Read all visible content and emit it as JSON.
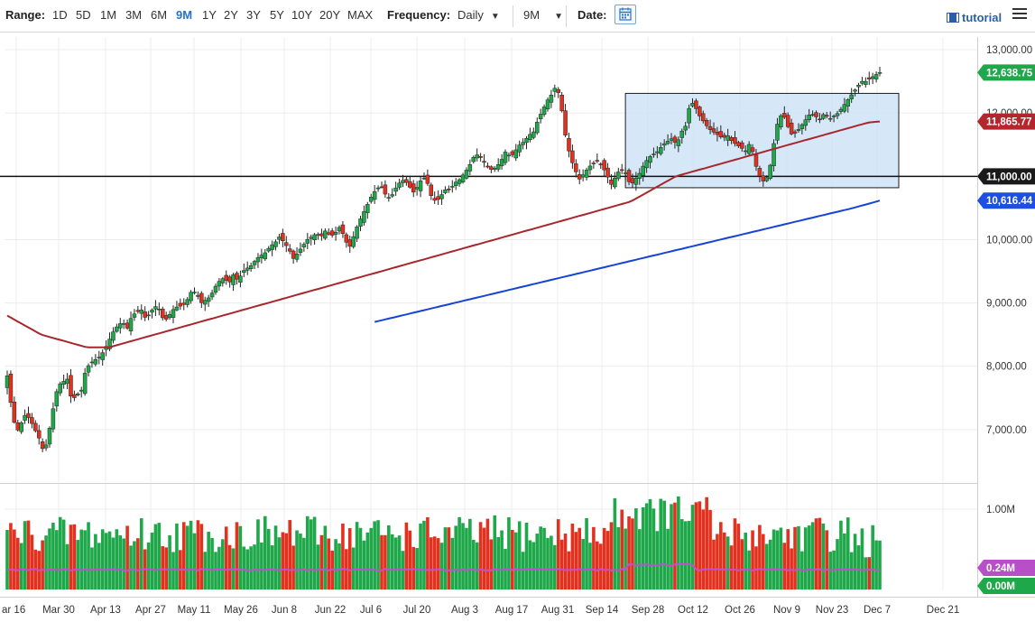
{
  "toolbar": {
    "range_label": "Range:",
    "ranges": [
      "1D",
      "5D",
      "1M",
      "3M",
      "6M",
      "9M",
      "1Y",
      "2Y",
      "3Y",
      "5Y",
      "10Y",
      "20Y",
      "MAX"
    ],
    "active_range": "9M",
    "frequency_label": "Frequency:",
    "frequency_value": "Daily",
    "period_value": "9M",
    "date_label": "Date:",
    "tutorial_label": "tutorial"
  },
  "colors": {
    "up": "#1fa84a",
    "down": "#e2321f",
    "ma_short": "#a8272c",
    "ma_long": "#1844d6",
    "volume_ma": "#c050d0",
    "range_box_fill": "#cfe3f7",
    "range_box_stroke": "#1a1a1a"
  },
  "chart_data": {
    "type": "candlestick",
    "price_axis": {
      "ticks": [
        "13,000.00",
        "12,000.00",
        "11,000.00",
        "10,000.00",
        "9,000.00",
        "8,000.00",
        "7,000.00"
      ],
      "ylim": [
        6200,
        13200
      ]
    },
    "x_axis": {
      "ticks": [
        "ar 16",
        "Mar 30",
        "Apr 13",
        "Apr 27",
        "May 11",
        "May 26",
        "Jun 8",
        "Jun 22",
        "Jul 6",
        "Jul 20",
        "Aug 3",
        "Aug 17",
        "Aug 31",
        "Sep 14",
        "Sep 28",
        "Oct 12",
        "Oct 26",
        "Nov 9",
        "Nov 23",
        "Dec 7",
        "Dec 21"
      ]
    },
    "price_badges": [
      {
        "label": "12,638.75",
        "value": 12638.75,
        "color": "#1fa84a"
      },
      {
        "label": "11,865.77",
        "value": 11865.77,
        "color": "#b3262b"
      },
      {
        "label": "11,000.00",
        "value": 11000,
        "color": "#1a1a1a"
      },
      {
        "label": "10,616.44",
        "value": 10616.44,
        "color": "#1e4fe0"
      }
    ],
    "horizontal_line": 11000,
    "range_box": {
      "start_index": 175,
      "end_index": 247,
      "low": 10820,
      "high": 12310
    },
    "closes": [
      7850,
      7300,
      6950,
      7100,
      7250,
      7150,
      7000,
      6850,
      6620,
      6950,
      7350,
      7700,
      7750,
      7800,
      7450,
      7550,
      7600,
      7950,
      8050,
      8100,
      8150,
      8250,
      8400,
      8550,
      8650,
      8700,
      8600,
      8800,
      8850,
      8900,
      8750,
      8850,
      8950,
      8900,
      8700,
      8800,
      8900,
      8950,
      8950,
      9050,
      9200,
      9150,
      9000,
      9050,
      9100,
      9250,
      9350,
      9400,
      9300,
      9450,
      9350,
      9500,
      9550,
      9600,
      9700,
      9750,
      9800,
      9900,
      9950,
      10050,
      9950,
      9850,
      9700,
      9800,
      9900,
      10000,
      10050,
      10100,
      10050,
      10150,
      10050,
      10100,
      10200,
      10050,
      9850,
      10050,
      10250,
      10400,
      10550,
      10700,
      10800,
      10850,
      10700,
      10650,
      10800,
      10900,
      10950,
      10850,
      10750,
      10850,
      11000,
      10900,
      10650,
      10600,
      10700,
      10800,
      10800,
      10900,
      10950,
      11050,
      11150,
      11300,
      11350,
      11250,
      11150,
      11100,
      11150,
      11250,
      11400,
      11300,
      11400,
      11500,
      11550,
      11650,
      11700,
      11900,
      12050,
      12200,
      12300,
      12450,
      12100,
      11600,
      11300,
      11100,
      10950,
      11050,
      11150,
      11200,
      11250,
      11150,
      11000,
      10850,
      11050,
      11100,
      11050,
      10850,
      10950,
      11050,
      11200,
      11300,
      11350,
      11400,
      11500,
      11550,
      11600,
      11500,
      11700,
      11800,
      12200,
      12100,
      11950,
      11850,
      11750,
      11700,
      11650,
      11600,
      11650,
      11550,
      11500,
      11450,
      11400,
      11550,
      11200,
      11000,
      10900,
      11050,
      11500,
      11900,
      12000,
      11800,
      11650,
      11700,
      11800,
      11900,
      12000,
      11950,
      11900,
      12000,
      11900,
      11950,
      12000,
      12100,
      12200,
      12300,
      12400,
      12500,
      12500,
      12550,
      12600,
      12638.75
    ],
    "ma_short": [
      8800,
      8700,
      8600,
      8500,
      8450,
      8400,
      8350,
      8300,
      8300,
      8300,
      8350,
      8400,
      8450,
      8500,
      8550,
      8600,
      8650,
      8700,
      8750,
      8800,
      8850,
      8900,
      8950,
      9000,
      9050,
      9100,
      9150,
      9200,
      9250,
      9300,
      9350,
      9400,
      9450,
      9500,
      9550,
      9600,
      9650,
      9700,
      9750,
      9800,
      9850,
      9900,
      9950,
      10000,
      10050,
      10100,
      10150,
      10200,
      10250,
      10300,
      10350,
      10400,
      10450,
      10500,
      10550,
      10600,
      10700,
      10800,
      10900,
      11000,
      11050,
      11100,
      11150,
      11200,
      11250,
      11300,
      11350,
      11400,
      11450,
      11500,
      11550,
      11600,
      11650,
      11700,
      11750,
      11800,
      11850,
      11865.77
    ],
    "ma_long": [
      8700,
      8800,
      8900,
      9000,
      9100,
      9200,
      9300,
      9400,
      9500,
      9600,
      9700,
      9800,
      9900,
      10000,
      10100,
      10200,
      10300,
      10400,
      10500,
      10616.44
    ],
    "volume": {
      "axis_ticks": [
        "1.00M"
      ],
      "badges": [
        {
          "label": "0.24M",
          "value": 0.24,
          "color": "#b94ec9"
        },
        {
          "label": "0.00M",
          "value": 0.0,
          "color": "#1fa84a"
        }
      ],
      "ylim": [
        0,
        1.25
      ]
    }
  }
}
